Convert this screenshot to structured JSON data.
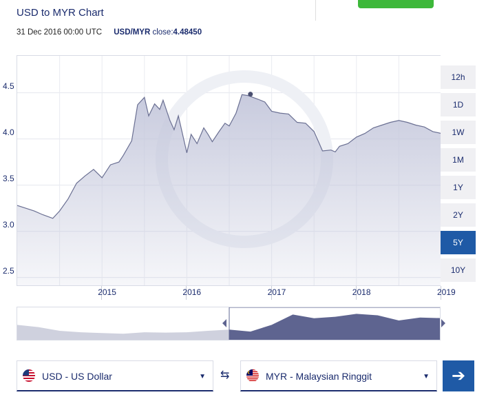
{
  "header": {
    "title": "USD to MYR Chart",
    "date": "31 Dec 2016 00:00 UTC",
    "pair": "USD/MYR",
    "close_label": "close:",
    "close_value": "4.48450"
  },
  "colors": {
    "accent": "#1f5aa6",
    "text": "#1a2b6d",
    "green": "#3db83a",
    "area_fill": "#c5c8dc",
    "line": "#6a6f92",
    "nav_selected": "#5e6490"
  },
  "range_buttons": [
    "12h",
    "1D",
    "1W",
    "1M",
    "1Y",
    "2Y",
    "5Y",
    "10Y"
  ],
  "range_selected": "5Y",
  "chart_data": {
    "type": "area",
    "title": "USD to MYR Chart",
    "xlabel": "",
    "ylabel": "",
    "ylim": [
      2.4,
      4.9
    ],
    "xlim": [
      2014.0,
      2019.0
    ],
    "yticks": [
      "2.5",
      "3.0",
      "3.5",
      "4.0",
      "4.5"
    ],
    "xticks": [
      "2015",
      "2016",
      "2017",
      "2018",
      "2019"
    ],
    "grid": true,
    "series": [
      {
        "x": [
          2014.0,
          2014.1,
          2014.2,
          2014.3,
          2014.42,
          2014.5,
          2014.6,
          2014.7,
          2014.8,
          2014.9,
          2015.0,
          2015.1,
          2015.2,
          2015.25,
          2015.35,
          2015.42,
          2015.5,
          2015.55,
          2015.62,
          2015.68,
          2015.72,
          2015.8,
          2015.85,
          2015.9,
          2016.0,
          2016.05,
          2016.12,
          2016.2,
          2016.25,
          2016.3,
          2016.38,
          2016.45,
          2016.5,
          2016.58,
          2016.65,
          2016.72,
          2016.78,
          2016.84,
          2016.92,
          2017.0,
          2017.1,
          2017.2,
          2017.3,
          2017.4,
          2017.5,
          2017.6,
          2017.7,
          2017.75,
          2017.8,
          2017.9,
          2018.0,
          2018.1,
          2018.2,
          2018.3,
          2018.4,
          2018.5,
          2018.6,
          2018.7,
          2018.8,
          2018.9,
          2019.0
        ],
        "y": [
          3.28,
          3.25,
          3.22,
          3.18,
          3.14,
          3.22,
          3.35,
          3.52,
          3.6,
          3.67,
          3.58,
          3.72,
          3.75,
          3.82,
          3.98,
          4.37,
          4.45,
          4.25,
          4.38,
          4.32,
          4.42,
          4.2,
          4.1,
          4.25,
          3.85,
          4.05,
          3.95,
          4.12,
          4.05,
          3.97,
          4.08,
          4.17,
          4.14,
          4.28,
          4.48,
          4.47,
          4.45,
          4.43,
          4.4,
          4.3,
          4.28,
          4.27,
          4.18,
          4.17,
          4.08,
          3.87,
          3.88,
          3.86,
          3.92,
          3.95,
          4.02,
          4.06,
          4.12,
          4.15,
          4.18,
          4.2,
          4.18,
          4.15,
          4.13,
          4.08,
          4.06
        ]
      }
    ],
    "highlight_point": {
      "x": 2016.75,
      "y": 4.4845
    }
  },
  "navigator": {
    "x_range": [
      2009.0,
      2019.0
    ],
    "y_range": [
      2.5,
      4.6
    ],
    "selected_from": 2014.0,
    "selected_to": 2019.0,
    "x": [
      2009.0,
      2009.5,
      2010.0,
      2010.5,
      2011.0,
      2011.5,
      2012.0,
      2012.5,
      2013.0,
      2013.5,
      2014.0,
      2014.5,
      2015.0,
      2015.5,
      2016.0,
      2016.5,
      2017.0,
      2017.5,
      2018.0,
      2018.5,
      2019.0
    ],
    "y": [
      3.6,
      3.45,
      3.2,
      3.1,
      3.05,
      3.0,
      3.1,
      3.08,
      3.1,
      3.2,
      3.28,
      3.15,
      3.6,
      4.3,
      4.05,
      4.15,
      4.35,
      4.25,
      3.9,
      4.1,
      4.06
    ]
  },
  "converter": {
    "from": {
      "flag": "us-flag-icon",
      "label": "USD - US Dollar"
    },
    "to": {
      "flag": "my-flag-icon",
      "label": "MYR - Malaysian Ringgit"
    },
    "caret": "▼",
    "swap_glyph": "⇆",
    "go_glyph": "➔"
  }
}
